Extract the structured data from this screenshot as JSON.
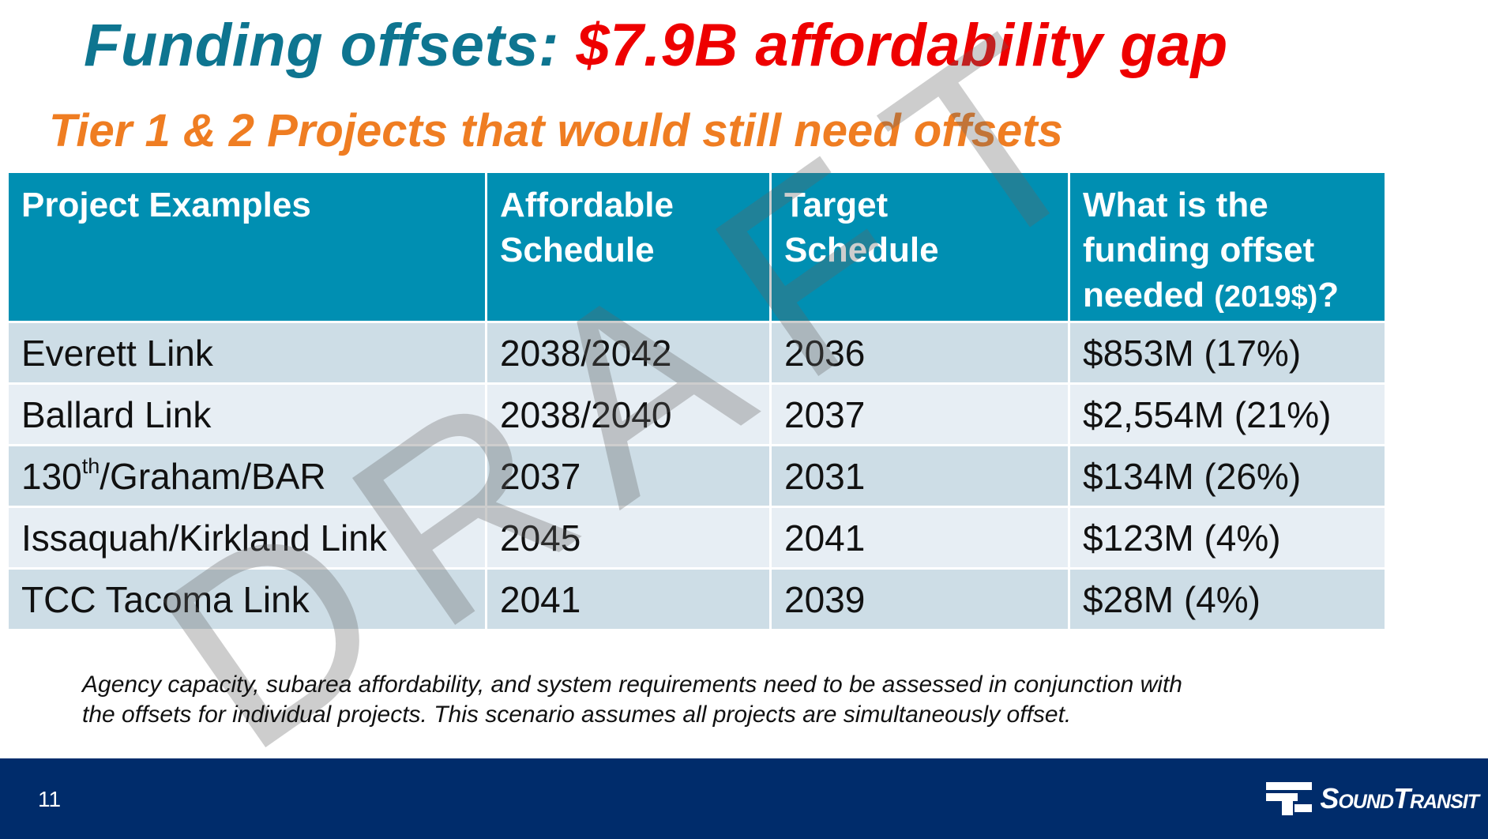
{
  "slide": {
    "title_main": "Funding offsets: ",
    "title_highlight": "$7.9B affordability gap",
    "subtitle": "Tier 1 & 2 Projects that would still need offsets",
    "watermark": [
      "D",
      "R",
      "A",
      "F",
      "T"
    ],
    "page_number": "11"
  },
  "table": {
    "headers": {
      "project_line1": "Project Examples",
      "affordable_line1": "Affordable",
      "affordable_line2": "Schedule",
      "target_line1": "Target",
      "target_line2": "Schedule",
      "offset_line1": "What is the",
      "offset_line2": "funding offset",
      "offset_line3": "needed",
      "offset_unit": "(2019$)",
      "offset_qmark": "?"
    },
    "rows": [
      {
        "project": "Everett Link",
        "affordable": "2038/2042",
        "target": "2036",
        "offset": "$853M (17%)"
      },
      {
        "project": "Ballard Link",
        "affordable": "2038/2040",
        "target": "2037",
        "offset": "$2,554M (21%)"
      },
      {
        "project": "130",
        "project_sup": "th",
        "project_rest": "/Graham/BAR",
        "affordable": "2037",
        "target": "2031",
        "offset": "$134M (26%)"
      },
      {
        "project": "Issaquah/Kirkland Link",
        "affordable": "2045",
        "target": "2041",
        "offset": "$123M (4%)"
      },
      {
        "project": "TCC Tacoma Link",
        "affordable": "2041",
        "target": "2039",
        "offset": "$28M (4%)"
      }
    ]
  },
  "footnote": {
    "line1": "Agency capacity, subarea affordability, and system requirements need to be assessed in conjunction with",
    "line2": "the offsets for individual projects.  This scenario assumes all projects are simultaneously offset."
  },
  "footer": {
    "logo_text": "SoundTransit",
    "logo_icon": "sound-transit-logo-icon"
  },
  "colors": {
    "title": "#0e7590",
    "highlight": "#ee0000",
    "subtitle": "#ef7d22",
    "header_bg": "#008fb2",
    "row_dark": "#cddde6",
    "row_light": "#e7eef4",
    "footer_bg": "#002c6b"
  }
}
